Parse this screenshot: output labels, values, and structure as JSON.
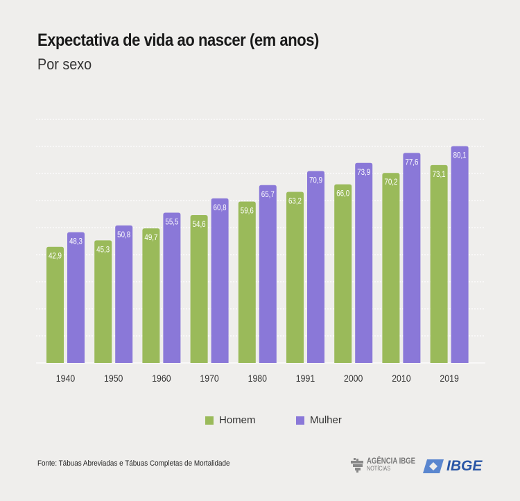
{
  "chart_data": {
    "type": "bar",
    "title": "Expectativa de vida ao nascer (em anos)",
    "subtitle": "Por sexo",
    "xlabel": "",
    "ylabel": "",
    "ylim": [
      0,
      90
    ],
    "grid": true,
    "legend_position": "bottom",
    "categories": [
      "1940",
      "1950",
      "1960",
      "1970",
      "1980",
      "1991",
      "2000",
      "2010",
      "2019"
    ],
    "series": [
      {
        "name": "Homem",
        "color": "#9aba5a",
        "values": [
          42.9,
          45.3,
          49.7,
          54.6,
          59.6,
          63.2,
          66.0,
          70.2,
          73.1
        ],
        "labels": [
          "42,9",
          "45,3",
          "49,7",
          "54,6",
          "59,6",
          "63,2",
          "66,0",
          "70,2",
          "73,1"
        ]
      },
      {
        "name": "Mulher",
        "color": "#8a78d8",
        "values": [
          48.3,
          50.8,
          55.5,
          60.8,
          65.7,
          70.9,
          73.9,
          77.6,
          80.1
        ],
        "labels": [
          "48,3",
          "50,8",
          "55,5",
          "60,8",
          "65,7",
          "70,9",
          "73,9",
          "77,6",
          "80,1"
        ]
      }
    ]
  },
  "footer": {
    "source": "Fonte: Tábuas Abreviadas e Tábuas Completas de Mortalidade",
    "logo_agencia": "AGÊNCIA IBGE",
    "logo_noticias": "NOTÍCIAS",
    "logo_ibge": "IBGE"
  }
}
